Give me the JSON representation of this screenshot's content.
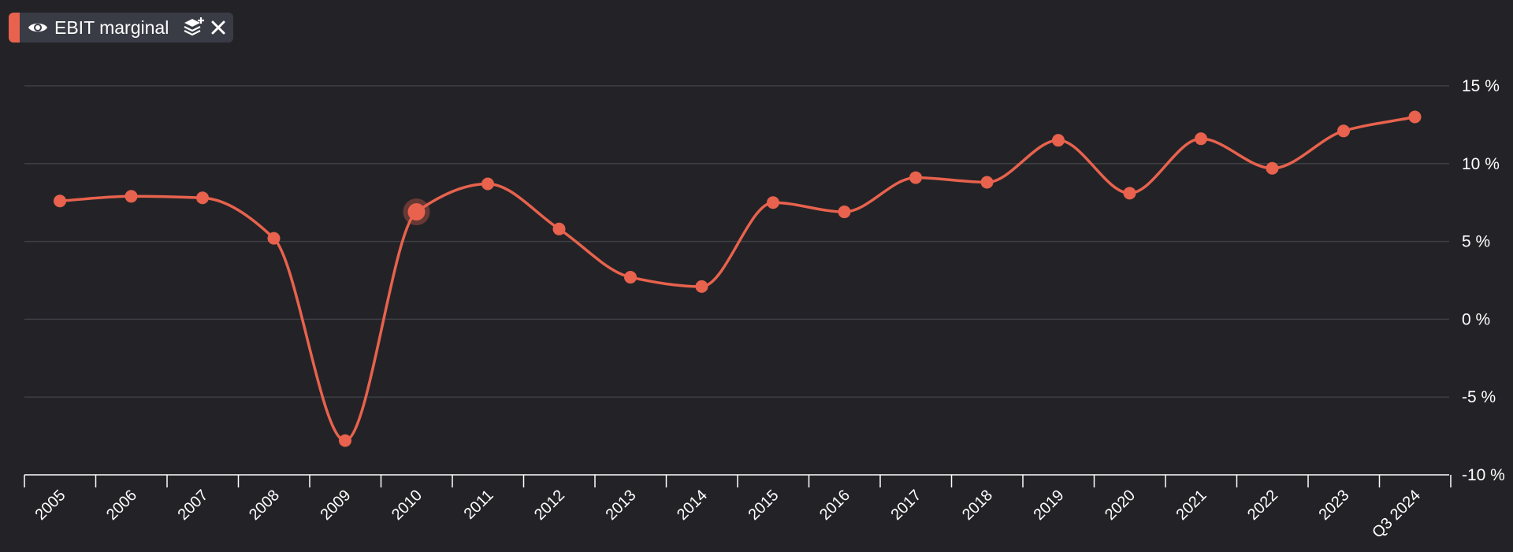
{
  "legend": {
    "label": "EBIT marginal",
    "color": "#e8624d",
    "icons": [
      "eye-icon",
      "layers-icon",
      "close-icon"
    ]
  },
  "colors": {
    "background": "#232327",
    "grid": "#3e3f45",
    "axis": "#ffffff",
    "series": "#e8624d"
  },
  "chart_data": {
    "type": "line",
    "title": "",
    "xlabel": "",
    "ylabel": "",
    "ylim": [
      -10,
      15
    ],
    "ytick_values": [
      15,
      10,
      5,
      0,
      -5,
      -10
    ],
    "ytick_labels": [
      "15 %",
      "10 %",
      "5 %",
      "0 %",
      "-5 %",
      "-10 %"
    ],
    "grid": true,
    "smooth": true,
    "categories": [
      "2005",
      "2006",
      "2007",
      "2008",
      "2009",
      "2010",
      "2011",
      "2012",
      "2013",
      "2014",
      "2015",
      "2016",
      "2017",
      "2018",
      "2019",
      "2020",
      "2021",
      "2022",
      "2023",
      "Q3 2024"
    ],
    "series": [
      {
        "name": "EBIT marginal",
        "color": "#e8624d",
        "values": [
          7.6,
          7.9,
          7.8,
          5.2,
          -7.8,
          6.9,
          8.7,
          5.8,
          2.7,
          2.1,
          7.5,
          6.9,
          9.1,
          8.8,
          11.5,
          8.1,
          11.6,
          9.7,
          12.1,
          13.0
        ]
      }
    ],
    "highlighted_category": "2010"
  }
}
